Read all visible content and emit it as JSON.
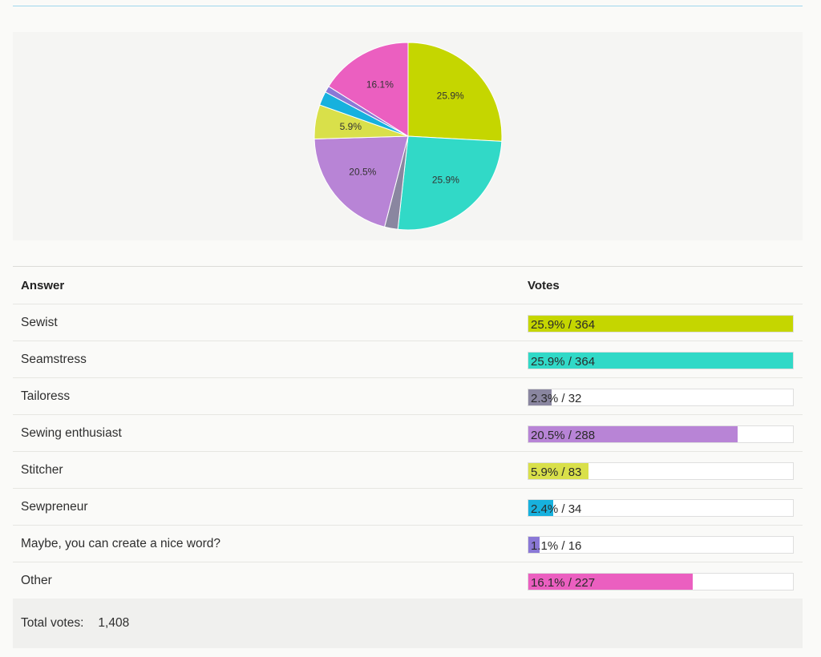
{
  "chart_data": {
    "type": "pie",
    "slices": [
      {
        "label": "Sewist",
        "percent": 25.9,
        "votes": 364,
        "color": "#c5d600"
      },
      {
        "label": "Seamstress",
        "percent": 25.9,
        "votes": 364,
        "color": "#31d9c7"
      },
      {
        "label": "Tailoress",
        "percent": 2.3,
        "votes": 32,
        "color": "#8a86a0"
      },
      {
        "label": "Sewing enthusiast",
        "percent": 20.5,
        "votes": 288,
        "color": "#b884d6"
      },
      {
        "label": "Stitcher",
        "percent": 5.9,
        "votes": 83,
        "color": "#d9e04a"
      },
      {
        "label": "Sewpreneur",
        "percent": 2.4,
        "votes": 34,
        "color": "#17b1de"
      },
      {
        "label": "Maybe, you can create a nice word?",
        "percent": 1.1,
        "votes": 16,
        "color": "#8a78d6"
      },
      {
        "label": "Other",
        "percent": 16.1,
        "votes": 227,
        "color": "#eb5fc0"
      }
    ]
  },
  "table": {
    "header_answer": "Answer",
    "header_votes": "Votes",
    "rows": [
      {
        "answer": "Sewist",
        "vote_text": "25.9% / 364"
      },
      {
        "answer": "Seamstress",
        "vote_text": "25.9% / 364"
      },
      {
        "answer": "Tailoress",
        "vote_text": "2.3% / 32"
      },
      {
        "answer": "Sewing enthusiast",
        "vote_text": "20.5% / 288"
      },
      {
        "answer": "Stitcher",
        "vote_text": "5.9% / 83"
      },
      {
        "answer": "Sewpreneur",
        "vote_text": "2.4% / 34"
      },
      {
        "answer": "Maybe, you can create a nice word?",
        "vote_text": "1.1% / 16"
      },
      {
        "answer": "Other",
        "vote_text": "16.1% / 227"
      }
    ]
  },
  "footer": {
    "total_label": "Total votes:",
    "total_value": "1,408"
  }
}
